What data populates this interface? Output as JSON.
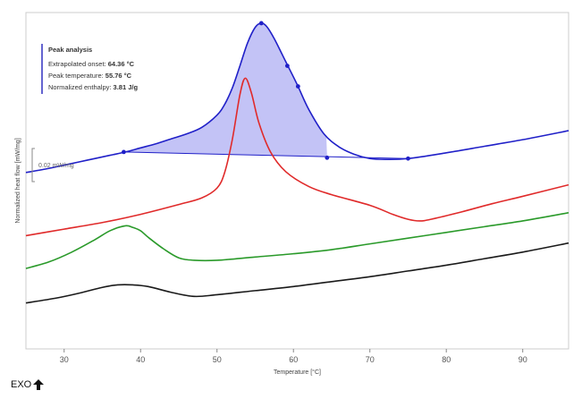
{
  "chart_data": {
    "type": "line",
    "xlabel": "Temperature [°C]",
    "ylabel": "Normalized heat flow [mW/mg]",
    "xlim": [
      25,
      96
    ],
    "xticks": [
      30,
      40,
      50,
      60,
      70,
      80,
      90
    ],
    "grid": false,
    "scale_bar_label": "0.02 mW/mg",
    "exo_label": "EXO",
    "colors": {
      "blue": "#2020c8",
      "red": "#e02a2a",
      "green": "#2a9a2a",
      "black": "#1a1a1a",
      "fill": "#b8b8f4",
      "annotation_bar": "#3030c0"
    },
    "series": [
      {
        "color": "#2020c8",
        "x": [
          25,
          28,
          30,
          33,
          36,
          38,
          40,
          42,
          44,
          46,
          48,
          50,
          51,
          52,
          53,
          54,
          55,
          55.8,
          56.5,
          57.5,
          59,
          60.5,
          62,
          64,
          66,
          68,
          70,
          72,
          75,
          80,
          85,
          90,
          96
        ],
        "y": [
          0.175,
          0.18,
          0.184,
          0.19,
          0.196,
          0.2,
          0.205,
          0.21,
          0.216,
          0.222,
          0.23,
          0.245,
          0.258,
          0.278,
          0.305,
          0.333,
          0.352,
          0.357,
          0.353,
          0.338,
          0.31,
          0.282,
          0.252,
          0.222,
          0.206,
          0.197,
          0.192,
          0.191,
          0.192,
          0.199,
          0.207,
          0.215,
          0.226
        ]
      },
      {
        "color": "#e02a2a",
        "x": [
          25,
          30,
          35,
          40,
          45,
          48,
          50,
          51,
          52,
          53,
          53.7,
          54.5,
          55.5,
          57,
          59,
          62,
          65,
          70,
          73,
          75,
          76.5,
          78,
          82,
          86,
          90,
          96
        ],
        "y": [
          0.098,
          0.106,
          0.114,
          0.124,
          0.136,
          0.144,
          0.156,
          0.175,
          0.215,
          0.27,
          0.29,
          0.272,
          0.235,
          0.2,
          0.176,
          0.158,
          0.148,
          0.135,
          0.124,
          0.118,
          0.116,
          0.118,
          0.127,
          0.137,
          0.146,
          0.16
        ]
      },
      {
        "color": "#2a9a2a",
        "x": [
          25,
          28,
          31,
          34,
          36,
          38,
          39,
          40,
          41,
          43,
          45,
          47,
          50,
          55,
          60,
          65,
          70,
          75,
          80,
          85,
          90,
          96
        ],
        "y": [
          0.058,
          0.066,
          0.078,
          0.093,
          0.104,
          0.11,
          0.108,
          0.104,
          0.096,
          0.082,
          0.071,
          0.068,
          0.068,
          0.072,
          0.076,
          0.081,
          0.088,
          0.095,
          0.102,
          0.109,
          0.116,
          0.126
        ]
      },
      {
        "color": "#1a1a1a",
        "x": [
          25,
          29,
          32,
          35,
          37,
          39,
          41,
          44,
          47,
          50,
          55,
          60,
          65,
          70,
          75,
          80,
          85,
          90,
          96
        ],
        "y": [
          0.016,
          0.022,
          0.028,
          0.035,
          0.038,
          0.038,
          0.036,
          0.029,
          0.024,
          0.026,
          0.031,
          0.036,
          0.042,
          0.048,
          0.055,
          0.062,
          0.07,
          0.078,
          0.089
        ]
      }
    ],
    "ylim": [
      -0.04,
      0.37
    ],
    "peak_analysis": {
      "title": "Peak analysis",
      "lines": [
        {
          "label": "Extrapolated onset:",
          "value": "64.36 °C"
        },
        {
          "label": "Peak temperature:",
          "value": "55.76 °C"
        },
        {
          "label": "Normalized enthalpy:",
          "value": "3.81 J/g"
        }
      ],
      "baseline": {
        "x": [
          37.8,
          75
        ],
        "y": [
          0.2,
          0.192
        ]
      },
      "markers": [
        {
          "x": 37.8,
          "y": 0.2
        },
        {
          "x": 55.8,
          "y": 0.357
        },
        {
          "x": 59.2,
          "y": 0.305
        },
        {
          "x": 60.6,
          "y": 0.28
        },
        {
          "x": 64.4,
          "y": 0.193
        },
        {
          "x": 75,
          "y": 0.192
        }
      ]
    }
  }
}
